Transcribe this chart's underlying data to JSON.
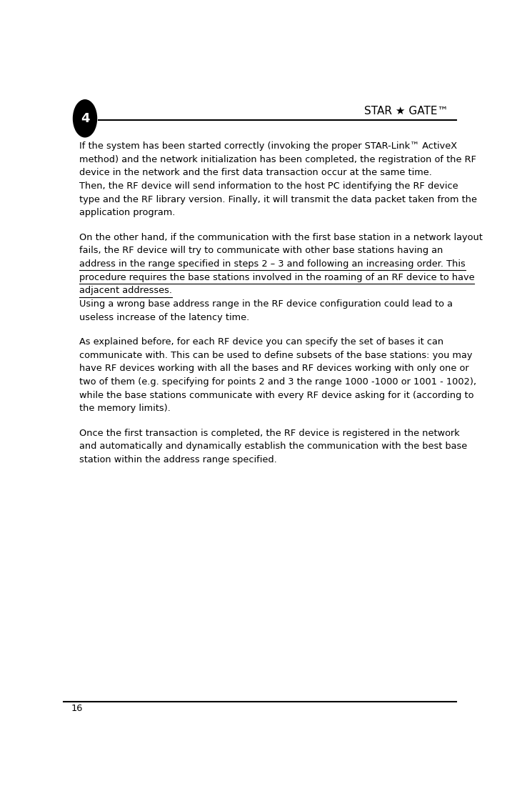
{
  "page_number": "4",
  "page_footer": "16",
  "header_title": "STAR ★ GATE™",
  "bg_color": "#ffffff",
  "text_color": "#000000",
  "header_circle_color": "#000000",
  "header_circle_text": "4",
  "header_line_color": "#000000",
  "font_size_body": 9.3,
  "font_size_header": 11,
  "font_size_footer": 9.3,
  "paragraphs_text": [
    {
      "lines": [
        "If the system has been started correctly (invoking the proper STAR-Link™ ActiveX",
        "method) and the network initialization has been completed, the registration of the RF",
        "device in the network and the first data transaction occur at the same time.",
        "Then, the RF device will send information to the host PC identifying the RF device",
        "type and the RF library version. Finally, it will transmit the data packet taken from the",
        "application program."
      ],
      "underline_lines": [],
      "space_before": false
    },
    {
      "lines": [
        "On the other hand, if the communication with the first base station in a network layout",
        "fails, the RF device will try to communicate with other base stations having an",
        "address in the range specified in steps 2 – 3 and following an increasing order. This",
        "procedure requires the base stations involved in the roaming of an RF device to have",
        "adjacent addresses.",
        "Using a wrong base address range in the RF device configuration could lead to a",
        "useless increase of the latency time."
      ],
      "underline_lines": [
        2,
        3,
        4
      ],
      "space_before": true
    },
    {
      "lines": [
        "As explained before, for each RF device you can specify the set of bases it can",
        "communicate with. This can be used to define subsets of the base stations: you may",
        "have RF devices working with all the bases and RF devices working with only one or",
        "two of them (e.g. specifying for points 2 and 3 the range 1000 -1000 or 1001 - 1002),",
        "while the base stations communicate with every RF device asking for it (according to",
        "the memory limits)."
      ],
      "underline_lines": [],
      "space_before": true
    },
    {
      "lines": [
        "Once the first transaction is completed, the RF device is registered in the network",
        "and automatically and dynamically establish the communication with the best base",
        "station within the address range specified."
      ],
      "underline_lines": [],
      "space_before": true
    }
  ]
}
